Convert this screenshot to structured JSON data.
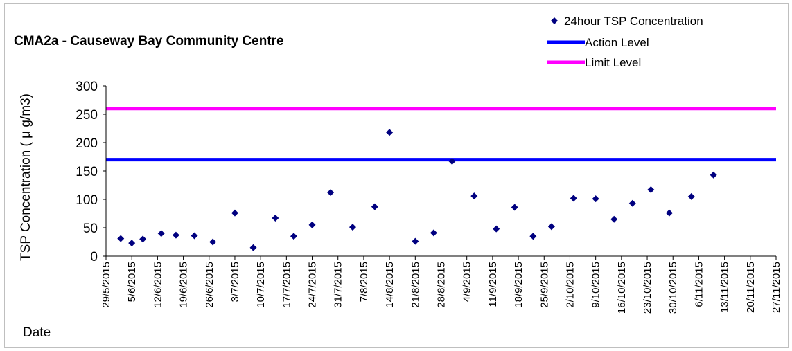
{
  "chart_data": {
    "type": "scatter",
    "title": "CMA2a - Causeway Bay Community Centre",
    "xlabel": "Date",
    "ylabel": "TSP Concentration ( μ g/m3)",
    "ylim": [
      0,
      300
    ],
    "yticks": [
      0,
      50,
      100,
      150,
      200,
      250,
      300
    ],
    "xlim": [
      "29/5/2015",
      "27/11/2015"
    ],
    "x_tick_labels": [
      "29/5/2015",
      "5/6/2015",
      "12/6/2015",
      "19/6/2015",
      "26/6/2015",
      "3/7/2015",
      "10/7/2015",
      "17/7/2015",
      "24/7/2015",
      "31/7/2015",
      "7/8/2015",
      "14/8/2015",
      "21/8/2015",
      "28/8/2015",
      "4/9/2015",
      "11/9/2015",
      "18/9/2015",
      "25/9/2015",
      "2/10/2015",
      "9/10/2015",
      "16/10/2015",
      "23/10/2015",
      "30/10/2015",
      "6/11/2015",
      "13/11/2015",
      "20/11/2015",
      "27/11/2015"
    ],
    "legend_position": "top-right",
    "grid": false,
    "series": [
      {
        "name": "24hour TSP Concentration",
        "marker": "diamond",
        "color": "#000080",
        "points": [
          {
            "x": "2/6/2015",
            "y": 31
          },
          {
            "x": "5/6/2015",
            "y": 23
          },
          {
            "x": "8/6/2015",
            "y": 30
          },
          {
            "x": "13/6/2015",
            "y": 40
          },
          {
            "x": "17/6/2015",
            "y": 37
          },
          {
            "x": "22/6/2015",
            "y": 36
          },
          {
            "x": "27/6/2015",
            "y": 25
          },
          {
            "x": "3/7/2015",
            "y": 76
          },
          {
            "x": "8/7/2015",
            "y": 15
          },
          {
            "x": "14/7/2015",
            "y": 67
          },
          {
            "x": "19/7/2015",
            "y": 35
          },
          {
            "x": "24/7/2015",
            "y": 55
          },
          {
            "x": "29/7/2015",
            "y": 112
          },
          {
            "x": "4/8/2015",
            "y": 51
          },
          {
            "x": "10/8/2015",
            "y": 87
          },
          {
            "x": "14/8/2015",
            "y": 218
          },
          {
            "x": "21/8/2015",
            "y": 26
          },
          {
            "x": "26/8/2015",
            "y": 41
          },
          {
            "x": "31/8/2015",
            "y": 167
          },
          {
            "x": "6/9/2015",
            "y": 106
          },
          {
            "x": "12/9/2015",
            "y": 48
          },
          {
            "x": "17/9/2015",
            "y": 86
          },
          {
            "x": "22/9/2015",
            "y": 35
          },
          {
            "x": "27/9/2015",
            "y": 52
          },
          {
            "x": "3/10/2015",
            "y": 102
          },
          {
            "x": "9/10/2015",
            "y": 101
          },
          {
            "x": "14/10/2015",
            "y": 65
          },
          {
            "x": "19/10/2015",
            "y": 93
          },
          {
            "x": "24/10/2015",
            "y": 117
          },
          {
            "x": "29/10/2015",
            "y": 76
          },
          {
            "x": "4/11/2015",
            "y": 105
          },
          {
            "x": "10/11/2015",
            "y": 143
          }
        ]
      },
      {
        "name": "Action Level",
        "type": "hline",
        "color": "#0000ff",
        "y": 170
      },
      {
        "name": "Limit Level",
        "type": "hline",
        "color": "#ff00ff",
        "y": 260
      }
    ]
  }
}
